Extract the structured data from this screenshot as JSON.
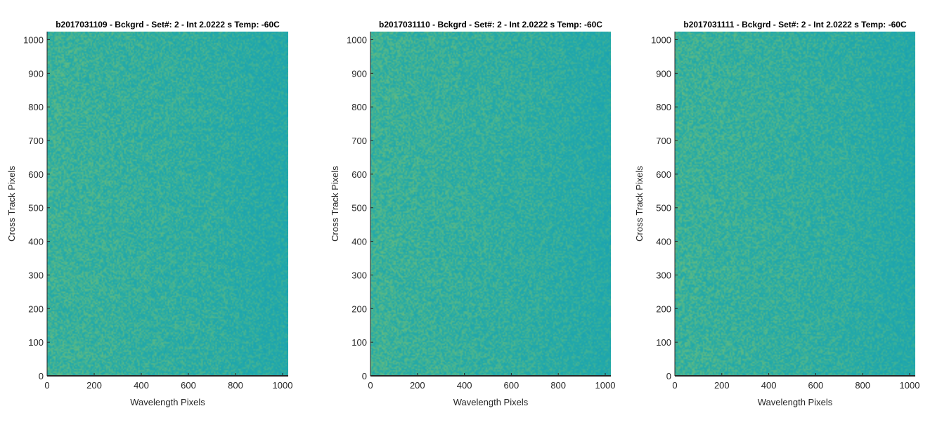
{
  "chart_data": [
    {
      "type": "heatmap",
      "title": "b2017031109 - Bckgrd - Set#: 2 - Int 2.0222 s Temp: -60C",
      "xlabel": "Wavelength Pixels",
      "ylabel": "Cross Track Pixels",
      "xlim": [
        0,
        1024
      ],
      "ylim": [
        0,
        1024
      ],
      "xticks": [
        0,
        200,
        400,
        600,
        800,
        1000
      ],
      "yticks": [
        0,
        100,
        200,
        300,
        400,
        500,
        600,
        700,
        800,
        900,
        1000
      ],
      "grid": false,
      "colors": {
        "base": "#24aaa8",
        "warm": "#6cbd7a",
        "cool": "#179fb6"
      }
    },
    {
      "type": "heatmap",
      "title": "b2017031110 - Bckgrd - Set#: 2 - Int 2.0222 s Temp: -60C",
      "xlabel": "Wavelength Pixels",
      "ylabel": "Cross Track Pixels",
      "xlim": [
        0,
        1024
      ],
      "ylim": [
        0,
        1024
      ],
      "xticks": [
        0,
        200,
        400,
        600,
        800,
        1000
      ],
      "yticks": [
        0,
        100,
        200,
        300,
        400,
        500,
        600,
        700,
        800,
        900,
        1000
      ],
      "grid": false,
      "colors": {
        "base": "#24aaa8",
        "warm": "#6cbd7a",
        "cool": "#179fb6"
      }
    },
    {
      "type": "heatmap",
      "title": "b2017031111 - Bckgrd - Set#: 2 - Int 2.0222 s Temp: -60C",
      "xlabel": "Wavelength Pixels",
      "ylabel": "Cross Track Pixels",
      "xlim": [
        0,
        1024
      ],
      "ylim": [
        0,
        1024
      ],
      "xticks": [
        0,
        200,
        400,
        600,
        800,
        1000
      ],
      "yticks": [
        0,
        100,
        200,
        300,
        400,
        500,
        600,
        700,
        800,
        900,
        1000
      ],
      "grid": false,
      "colors": {
        "base": "#24aaa8",
        "warm": "#6cbd7a",
        "cool": "#179fb6"
      }
    }
  ]
}
